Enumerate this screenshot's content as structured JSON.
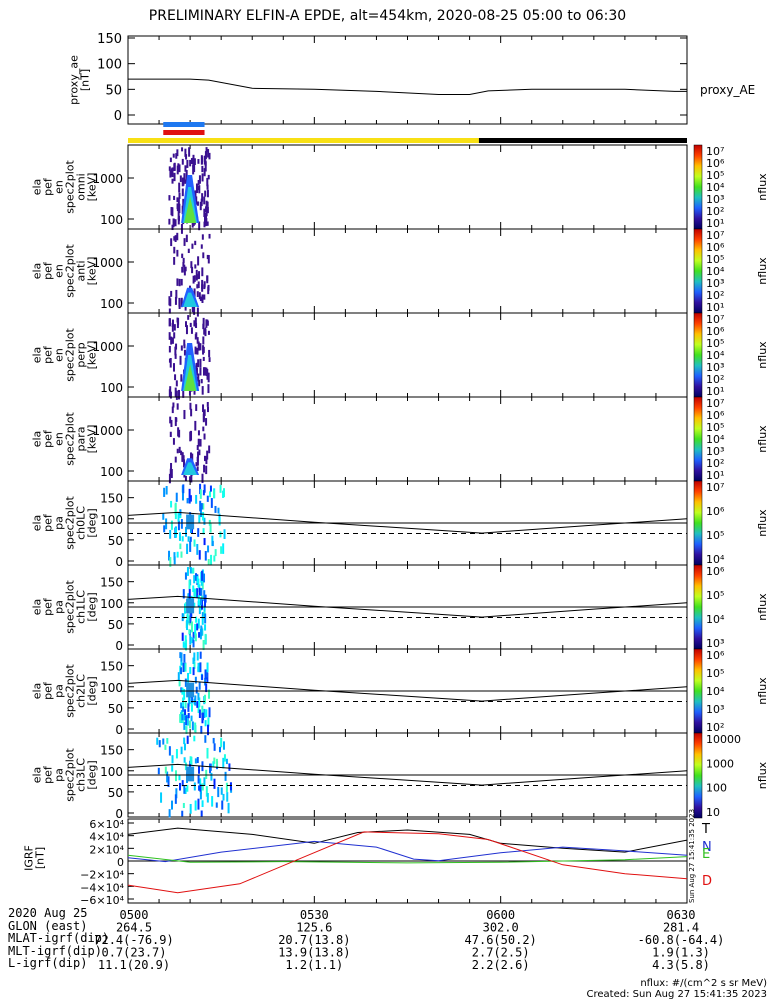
{
  "title": "PRELIMINARY ELFIN-A EPDE, alt=454km, 2020-08-25 05:00 to 06:30",
  "colors": {
    "state_bar_day": "#f8e014",
    "state_bar_night": "#000000",
    "science_zone_blue": "#1e78f0",
    "science_zone_red": "#e01010",
    "grf_T": "#000000",
    "grf_N": "#2030d0",
    "grf_E": "#30c020",
    "grf_D": "#e01010"
  },
  "panels": {
    "proxy_ae": {
      "ylabel": "proxy_ae\n[nT]",
      "legend": "proxy_AE",
      "ticks": [
        "150",
        "100",
        "50",
        "0"
      ]
    },
    "energy_panels": [
      {
        "ylabel": "ela\npef\nen\nspec2plot\nomni\n[keV]",
        "ticks": [
          "1000",
          "100"
        ]
      },
      {
        "ylabel": "ela\npef\nen\nspec2plot\nanti\n[keV]",
        "ticks": [
          "1000",
          "100"
        ]
      },
      {
        "ylabel": "ela\npef\nen\nspec2plot\nperp\n[keV]",
        "ticks": [
          "1000",
          "100"
        ]
      },
      {
        "ylabel": "ela\npef\nen\nspec2plot\npara\n[keV]",
        "ticks": [
          "1000",
          "100"
        ]
      }
    ],
    "pitch_panels": [
      {
        "ylabel": "ela\npef\npa\nspec2plot\nch0LC\n[deg]",
        "ticks": [
          "150",
          "100",
          "50",
          "0"
        ]
      },
      {
        "ylabel": "ela\npef\npa\nspec2plot\nch1LC\n[deg]",
        "ticks": [
          "150",
          "100",
          "50",
          "0"
        ]
      },
      {
        "ylabel": "ela\npef\npa\nspec2plot\nch2LC\n[deg]",
        "ticks": [
          "150",
          "100",
          "50",
          "0"
        ]
      },
      {
        "ylabel": "ela\npef\npa\nspec2plot\nch3LC\n[deg]",
        "ticks": [
          "150",
          "100",
          "50",
          "0"
        ]
      }
    ],
    "grf": {
      "ylabel": "IGRF\n[nT]",
      "ticks": [
        "6×10⁴",
        "4×10⁴",
        "2×10⁴",
        "0",
        "−2×10⁴",
        "−4×10⁴",
        "−6×10⁴"
      ],
      "labels": [
        "T",
        "N",
        "E",
        "D"
      ],
      "side_note": "Sun Aug 27 15:41:35 2023"
    }
  },
  "colorbars": [
    {
      "label": "nflux",
      "ticks": [
        "10⁷",
        "10⁶",
        "10⁵",
        "10⁴",
        "10³",
        "10²",
        "10¹"
      ]
    },
    {
      "label": "nflux",
      "ticks": [
        "10⁷",
        "10⁶",
        "10⁵",
        "10⁴",
        "10³",
        "10²",
        "10¹"
      ]
    },
    {
      "label": "nflux",
      "ticks": [
        "10⁷",
        "10⁶",
        "10⁵",
        "10⁴",
        "10³",
        "10²",
        "10¹"
      ]
    },
    {
      "label": "nflux",
      "ticks": [
        "10⁷",
        "10⁶",
        "10⁵",
        "10⁴",
        "10³",
        "10²",
        "10¹"
      ]
    },
    {
      "label": "nflux",
      "ticks": [
        "10⁷",
        "10⁶",
        "10⁵",
        "10⁴"
      ]
    },
    {
      "label": "nflux",
      "ticks": [
        "10⁶",
        "10⁵",
        "10⁴",
        "10³"
      ]
    },
    {
      "label": "nflux",
      "ticks": [
        "10⁶",
        "10⁵",
        "10⁴",
        "10³",
        "10²"
      ]
    },
    {
      "label": "nflux",
      "ticks": [
        "10000",
        "1000",
        "100",
        "10"
      ]
    }
  ],
  "chart_data": {
    "type": "line",
    "time_axis": {
      "start": "05:00",
      "end": "06:30",
      "ticks": [
        "0500",
        "0530",
        "0600",
        "0630"
      ]
    },
    "proxy_ae": {
      "name": "proxy_AE",
      "x_min": [
        0,
        10,
        13,
        20,
        30,
        40,
        50,
        55,
        58,
        65,
        80,
        88,
        90
      ],
      "values": [
        70,
        70,
        68,
        52,
        50,
        46,
        40,
        40,
        47,
        50,
        50,
        46,
        46
      ],
      "ylim": [
        0,
        150
      ]
    },
    "state_bar": {
      "day_until_min": 56.5
    },
    "science_zone_min": [
      6,
      12
    ],
    "grf": {
      "ylim": [
        -60000,
        60000
      ],
      "series": [
        {
          "name": "T",
          "x_min": [
            0,
            8,
            20,
            30,
            37,
            45,
            55,
            60,
            70,
            80,
            90
          ],
          "values": [
            42000,
            52000,
            42000,
            28000,
            45000,
            49000,
            42000,
            28000,
            20000,
            14000,
            33000
          ]
        },
        {
          "name": "N",
          "x_min": [
            0,
            6,
            15,
            30,
            40,
            46,
            50,
            60,
            70,
            80,
            90
          ],
          "values": [
            5000,
            -1000,
            14000,
            31000,
            22000,
            3000,
            500,
            13000,
            22000,
            16000,
            9000
          ]
        },
        {
          "name": "E",
          "x_min": [
            0,
            10,
            25,
            45,
            60,
            80,
            90
          ],
          "values": [
            9000,
            -2000,
            -1000,
            -3000,
            -2000,
            2000,
            7000
          ]
        },
        {
          "name": "D",
          "x_min": [
            0,
            8,
            18,
            28,
            38,
            50,
            58,
            70,
            80,
            90
          ],
          "values": [
            -38000,
            -50000,
            -36000,
            5000,
            46000,
            43000,
            34000,
            -6000,
            -20000,
            -28000
          ]
        }
      ]
    },
    "pitch_loss_cone": {
      "solid_x_min": [
        0,
        8,
        30,
        57,
        75,
        90
      ],
      "solid_deg": [
        108,
        115,
        92,
        66,
        85,
        100
      ],
      "flat_solid_deg": 90,
      "dashed_deg": 65
    }
  },
  "ephemeris": {
    "row_labels": [
      "2020 Aug 25",
      "GLON (east)",
      "MLAT-igrf(dip)",
      "MLT-igrf(dip)",
      "L-igrf(dip)"
    ],
    "columns": [
      {
        "time": "0500",
        "glon": "264.5",
        "mlat": "72.4(-76.9)",
        "mlt": "0.7(23.7)",
        "l": "11.1(20.9)"
      },
      {
        "time": "0530",
        "glon": "125.6",
        "mlat": "20.7(13.8)",
        "mlt": "13.9(13.8)",
        "l": "1.2(1.1)"
      },
      {
        "time": "0600",
        "glon": "302.0",
        "mlat": "47.6(50.2)",
        "mlt": "2.7(2.5)",
        "l": "2.2(2.6)"
      },
      {
        "time": "0630",
        "glon": "281.4",
        "mlat": "-60.8(-64.4)",
        "mlt": "1.9(1.3)",
        "l": "4.3(5.8)"
      }
    ]
  },
  "footer": {
    "units": "nflux: #/(cm^2 s sr MeV)",
    "created": "Created: Sun Aug 27 15:41:35 2023"
  }
}
